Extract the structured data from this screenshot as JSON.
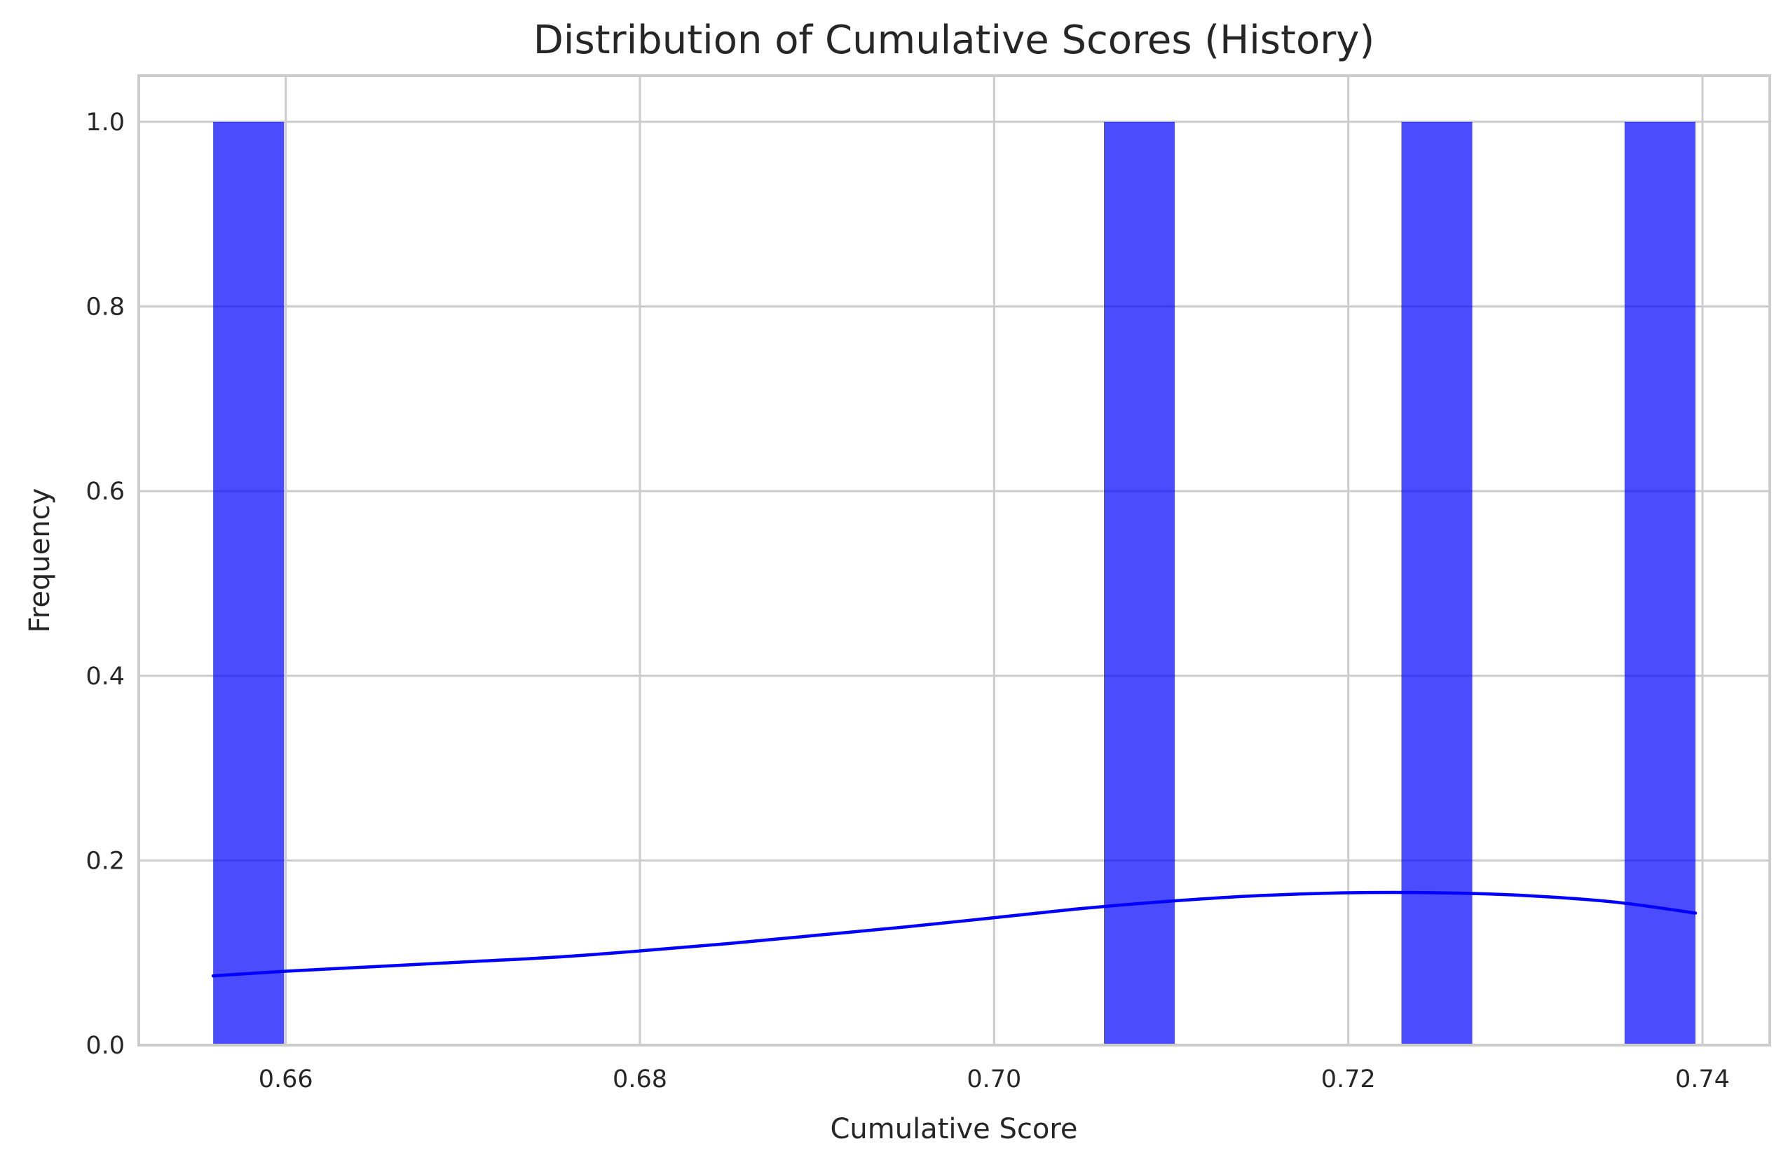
{
  "chart_data": {
    "type": "bar",
    "title": "Distribution of Cumulative Scores (History)",
    "xlabel": "Cumulative Score",
    "ylabel": "Frequency",
    "xlim": [
      0.6517,
      0.7438
    ],
    "ylim": [
      0,
      1.05
    ],
    "xticks": [
      0.66,
      0.68,
      0.7,
      0.72,
      0.74
    ],
    "xtick_labels": [
      "0.66",
      "0.68",
      "0.70",
      "0.72",
      "0.74"
    ],
    "yticks": [
      0.0,
      0.2,
      0.4,
      0.6,
      0.8,
      1.0
    ],
    "ytick_labels": [
      "0.0",
      "0.2",
      "0.4",
      "0.6",
      "0.8",
      "1.0"
    ],
    "grid": true,
    "bar_color": "#0000ff",
    "bar_opacity": 0.7,
    "bars": [
      {
        "x0": 0.6559,
        "x1": 0.6599,
        "value": 1
      },
      {
        "x0": 0.7062,
        "x1": 0.7102,
        "value": 1
      },
      {
        "x0": 0.723,
        "x1": 0.727,
        "value": 1
      },
      {
        "x0": 0.7356,
        "x1": 0.7396,
        "value": 1
      }
    ],
    "kde_color": "#0000ff",
    "kde": {
      "x": [
        0.6559,
        0.66,
        0.665,
        0.67,
        0.675,
        0.68,
        0.685,
        0.69,
        0.695,
        0.7,
        0.705,
        0.71,
        0.715,
        0.72,
        0.725,
        0.73,
        0.735,
        0.7396
      ],
      "y": [
        0.075,
        0.08,
        0.085,
        0.09,
        0.095,
        0.102,
        0.11,
        0.119,
        0.128,
        0.138,
        0.148,
        0.156,
        0.162,
        0.165,
        0.165,
        0.162,
        0.155,
        0.143
      ]
    }
  }
}
